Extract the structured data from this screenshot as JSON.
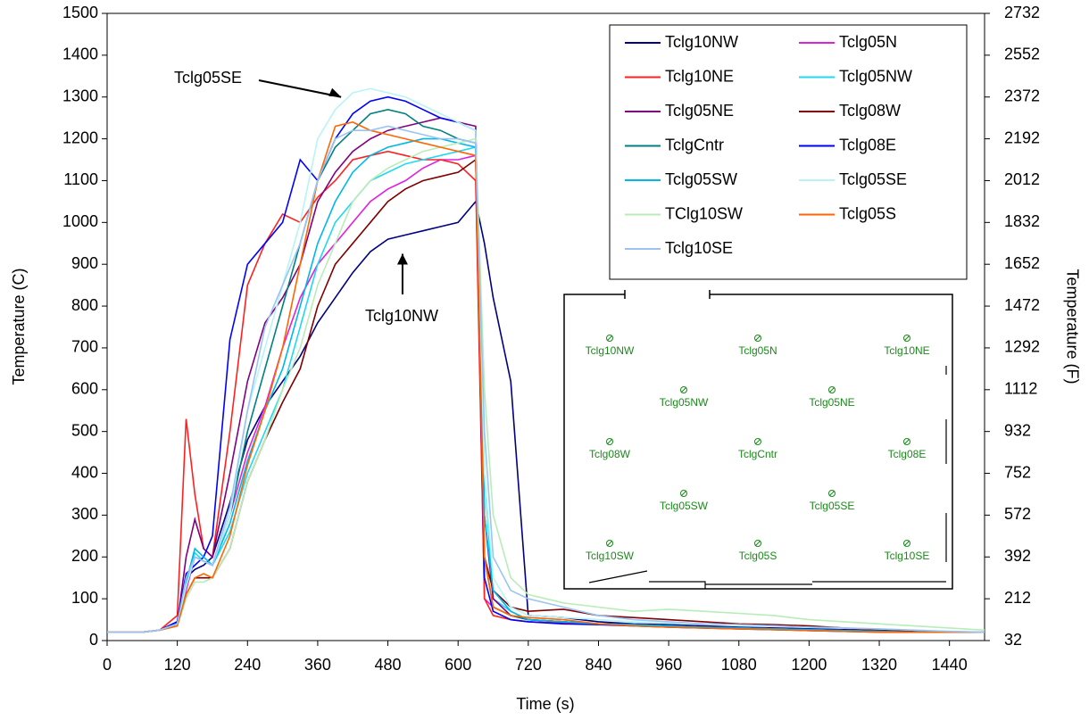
{
  "chart_data": {
    "type": "line",
    "x_label": "Time (s)",
    "y_label": "Temperature (C)",
    "y2_label": "Temperature (F)",
    "xlim": [
      0,
      1500
    ],
    "xticks": [
      0,
      120,
      240,
      360,
      480,
      600,
      720,
      840,
      960,
      1080,
      1200,
      1320,
      1440
    ],
    "ylim": [
      0,
      1500
    ],
    "yticks": [
      0,
      100,
      200,
      300,
      400,
      500,
      600,
      700,
      800,
      900,
      1000,
      1100,
      1200,
      1300,
      1400,
      1500
    ],
    "y2lim": [
      32,
      2732
    ],
    "y2ticks": [
      32,
      212,
      392,
      572,
      752,
      932,
      1112,
      1292,
      1472,
      1652,
      1832,
      2012,
      2192,
      2372,
      2552,
      2732
    ],
    "x": [
      0,
      30,
      60,
      90,
      120,
      135,
      150,
      165,
      180,
      210,
      240,
      270,
      300,
      330,
      360,
      390,
      420,
      450,
      480,
      510,
      540,
      570,
      600,
      630,
      645,
      660,
      690,
      720,
      780,
      840,
      900,
      960,
      1020,
      1080,
      1140,
      1200,
      1260,
      1320,
      1380,
      1440,
      1500
    ],
    "series": [
      {
        "name": "Tclg10NW",
        "color": "#000080",
        "values": [
          20,
          20,
          20,
          25,
          45,
          150,
          170,
          180,
          200,
          330,
          480,
          560,
          620,
          680,
          760,
          820,
          880,
          930,
          960,
          970,
          980,
          990,
          1000,
          1050,
          950,
          820,
          620,
          60,
          55,
          45,
          40,
          38,
          35,
          32,
          30,
          28,
          26,
          24,
          22,
          20,
          20
        ]
      },
      {
        "name": "Tclg05N",
        "color": "#e020e0",
        "values": [
          20,
          20,
          20,
          25,
          40,
          120,
          200,
          190,
          180,
          300,
          450,
          560,
          700,
          820,
          900,
          950,
          1000,
          1050,
          1080,
          1100,
          1130,
          1150,
          1150,
          1160,
          100,
          80,
          60,
          50,
          45,
          40,
          38,
          35,
          32,
          30,
          28,
          26,
          24,
          22,
          20,
          20,
          20
        ]
      },
      {
        "name": "Tclg10NE",
        "color": "#ff2020",
        "values": [
          20,
          20,
          20,
          25,
          60,
          530,
          350,
          220,
          200,
          500,
          850,
          950,
          1020,
          1000,
          1060,
          1100,
          1150,
          1160,
          1170,
          1160,
          1150,
          1150,
          1140,
          1100,
          100,
          60,
          50,
          45,
          42,
          40,
          38,
          35,
          32,
          30,
          28,
          26,
          24,
          22,
          20,
          20,
          20
        ]
      },
      {
        "name": "Tclg05NW",
        "color": "#20d8f0",
        "values": [
          20,
          20,
          20,
          25,
          40,
          130,
          210,
          190,
          180,
          260,
          400,
          500,
          600,
          750,
          900,
          1000,
          1050,
          1100,
          1120,
          1140,
          1150,
          1160,
          1170,
          1180,
          400,
          100,
          70,
          50,
          45,
          40,
          38,
          35,
          32,
          30,
          28,
          26,
          24,
          22,
          20,
          20,
          20
        ]
      },
      {
        "name": "Tclg05NE",
        "color": "#800080",
        "values": [
          20,
          20,
          20,
          25,
          40,
          200,
          290,
          220,
          200,
          400,
          620,
          760,
          820,
          900,
          1050,
          1120,
          1170,
          1200,
          1220,
          1230,
          1240,
          1250,
          1240,
          1230,
          300,
          100,
          60,
          50,
          45,
          40,
          38,
          35,
          32,
          30,
          28,
          26,
          24,
          22,
          20,
          20,
          20
        ]
      },
      {
        "name": "Tclg08W",
        "color": "#800000",
        "values": [
          20,
          20,
          20,
          25,
          35,
          110,
          150,
          150,
          150,
          220,
          380,
          480,
          570,
          650,
          800,
          900,
          950,
          1000,
          1050,
          1080,
          1100,
          1110,
          1120,
          1150,
          200,
          120,
          80,
          70,
          75,
          60,
          55,
          50,
          45,
          40,
          38,
          35,
          30,
          25,
          22,
          20,
          20
        ]
      },
      {
        "name": "TclgCntr",
        "color": "#008080",
        "values": [
          20,
          20,
          20,
          25,
          40,
          130,
          200,
          190,
          180,
          300,
          500,
          650,
          800,
          950,
          1100,
          1180,
          1220,
          1260,
          1270,
          1260,
          1230,
          1220,
          1200,
          1190,
          200,
          80,
          60,
          50,
          45,
          40,
          38,
          35,
          32,
          30,
          28,
          26,
          24,
          22,
          20,
          20,
          20
        ]
      },
      {
        "name": "Tclg08E",
        "color": "#0000ff",
        "values": [
          20,
          20,
          20,
          25,
          45,
          160,
          180,
          200,
          250,
          720,
          900,
          950,
          1000,
          1150,
          1100,
          1200,
          1260,
          1290,
          1300,
          1290,
          1270,
          1250,
          1240,
          1220,
          150,
          70,
          50,
          45,
          40,
          38,
          35,
          32,
          30,
          28,
          26,
          24,
          22,
          20,
          20,
          20,
          20
        ]
      },
      {
        "name": "Tclg05SW",
        "color": "#00b8e8",
        "values": [
          20,
          20,
          20,
          25,
          40,
          140,
          220,
          200,
          180,
          280,
          430,
          550,
          650,
          800,
          950,
          1050,
          1120,
          1160,
          1180,
          1190,
          1200,
          1200,
          1190,
          1180,
          300,
          120,
          70,
          50,
          45,
          40,
          38,
          35,
          32,
          30,
          28,
          26,
          24,
          22,
          20,
          20,
          20
        ]
      },
      {
        "name": "Tclg05SE",
        "color": "#b8f4f4",
        "values": [
          20,
          20,
          20,
          25,
          40,
          130,
          200,
          190,
          180,
          300,
          550,
          700,
          850,
          1000,
          1200,
          1270,
          1310,
          1320,
          1310,
          1300,
          1280,
          1260,
          1240,
          1220,
          400,
          150,
          80,
          60,
          55,
          50,
          45,
          42,
          40,
          38,
          35,
          32,
          30,
          28,
          25,
          22,
          20
        ]
      },
      {
        "name": "TClg10SW",
        "color": "#b8ecb8",
        "values": [
          20,
          20,
          20,
          25,
          35,
          100,
          140,
          140,
          150,
          220,
          380,
          480,
          600,
          700,
          850,
          950,
          1050,
          1100,
          1130,
          1150,
          1170,
          1180,
          1190,
          1200,
          600,
          300,
          150,
          110,
          90,
          80,
          70,
          75,
          70,
          65,
          60,
          50,
          45,
          40,
          35,
          30,
          25
        ]
      },
      {
        "name": "Tclg05S",
        "color": "#ff6600",
        "values": [
          20,
          20,
          20,
          25,
          35,
          110,
          150,
          160,
          150,
          250,
          420,
          550,
          700,
          900,
          1100,
          1230,
          1240,
          1220,
          1210,
          1200,
          1190,
          1180,
          1170,
          1160,
          200,
          80,
          60,
          55,
          50,
          40,
          35,
          32,
          30,
          28,
          26,
          24,
          22,
          20,
          20,
          20,
          20
        ]
      },
      {
        "name": "Tclg10SE",
        "color": "#99c4f4",
        "values": [
          20,
          20,
          20,
          25,
          40,
          150,
          200,
          190,
          180,
          320,
          550,
          750,
          850,
          950,
          1100,
          1200,
          1220,
          1220,
          1230,
          1220,
          1210,
          1200,
          1200,
          1190,
          500,
          200,
          120,
          100,
          80,
          60,
          50,
          45,
          40,
          38,
          35,
          32,
          30,
          28,
          25,
          22,
          20
        ]
      }
    ],
    "annotations": [
      {
        "text": "Tclg05SE",
        "x": 400,
        "y": 1300
      },
      {
        "text": "Tclg10NW",
        "x": 505,
        "y": 925
      }
    ],
    "sensor_labels": [
      "Tclg10NW",
      "Tclg05N",
      "Tclg10NE",
      "Tclg05NW",
      "Tclg05NE",
      "Tclg08W",
      "TclgCntr",
      "Tclg08E",
      "Tclg05SW",
      "Tclg05SE",
      "Tclg10SW",
      "Tclg05S",
      "Tclg10SE"
    ]
  }
}
